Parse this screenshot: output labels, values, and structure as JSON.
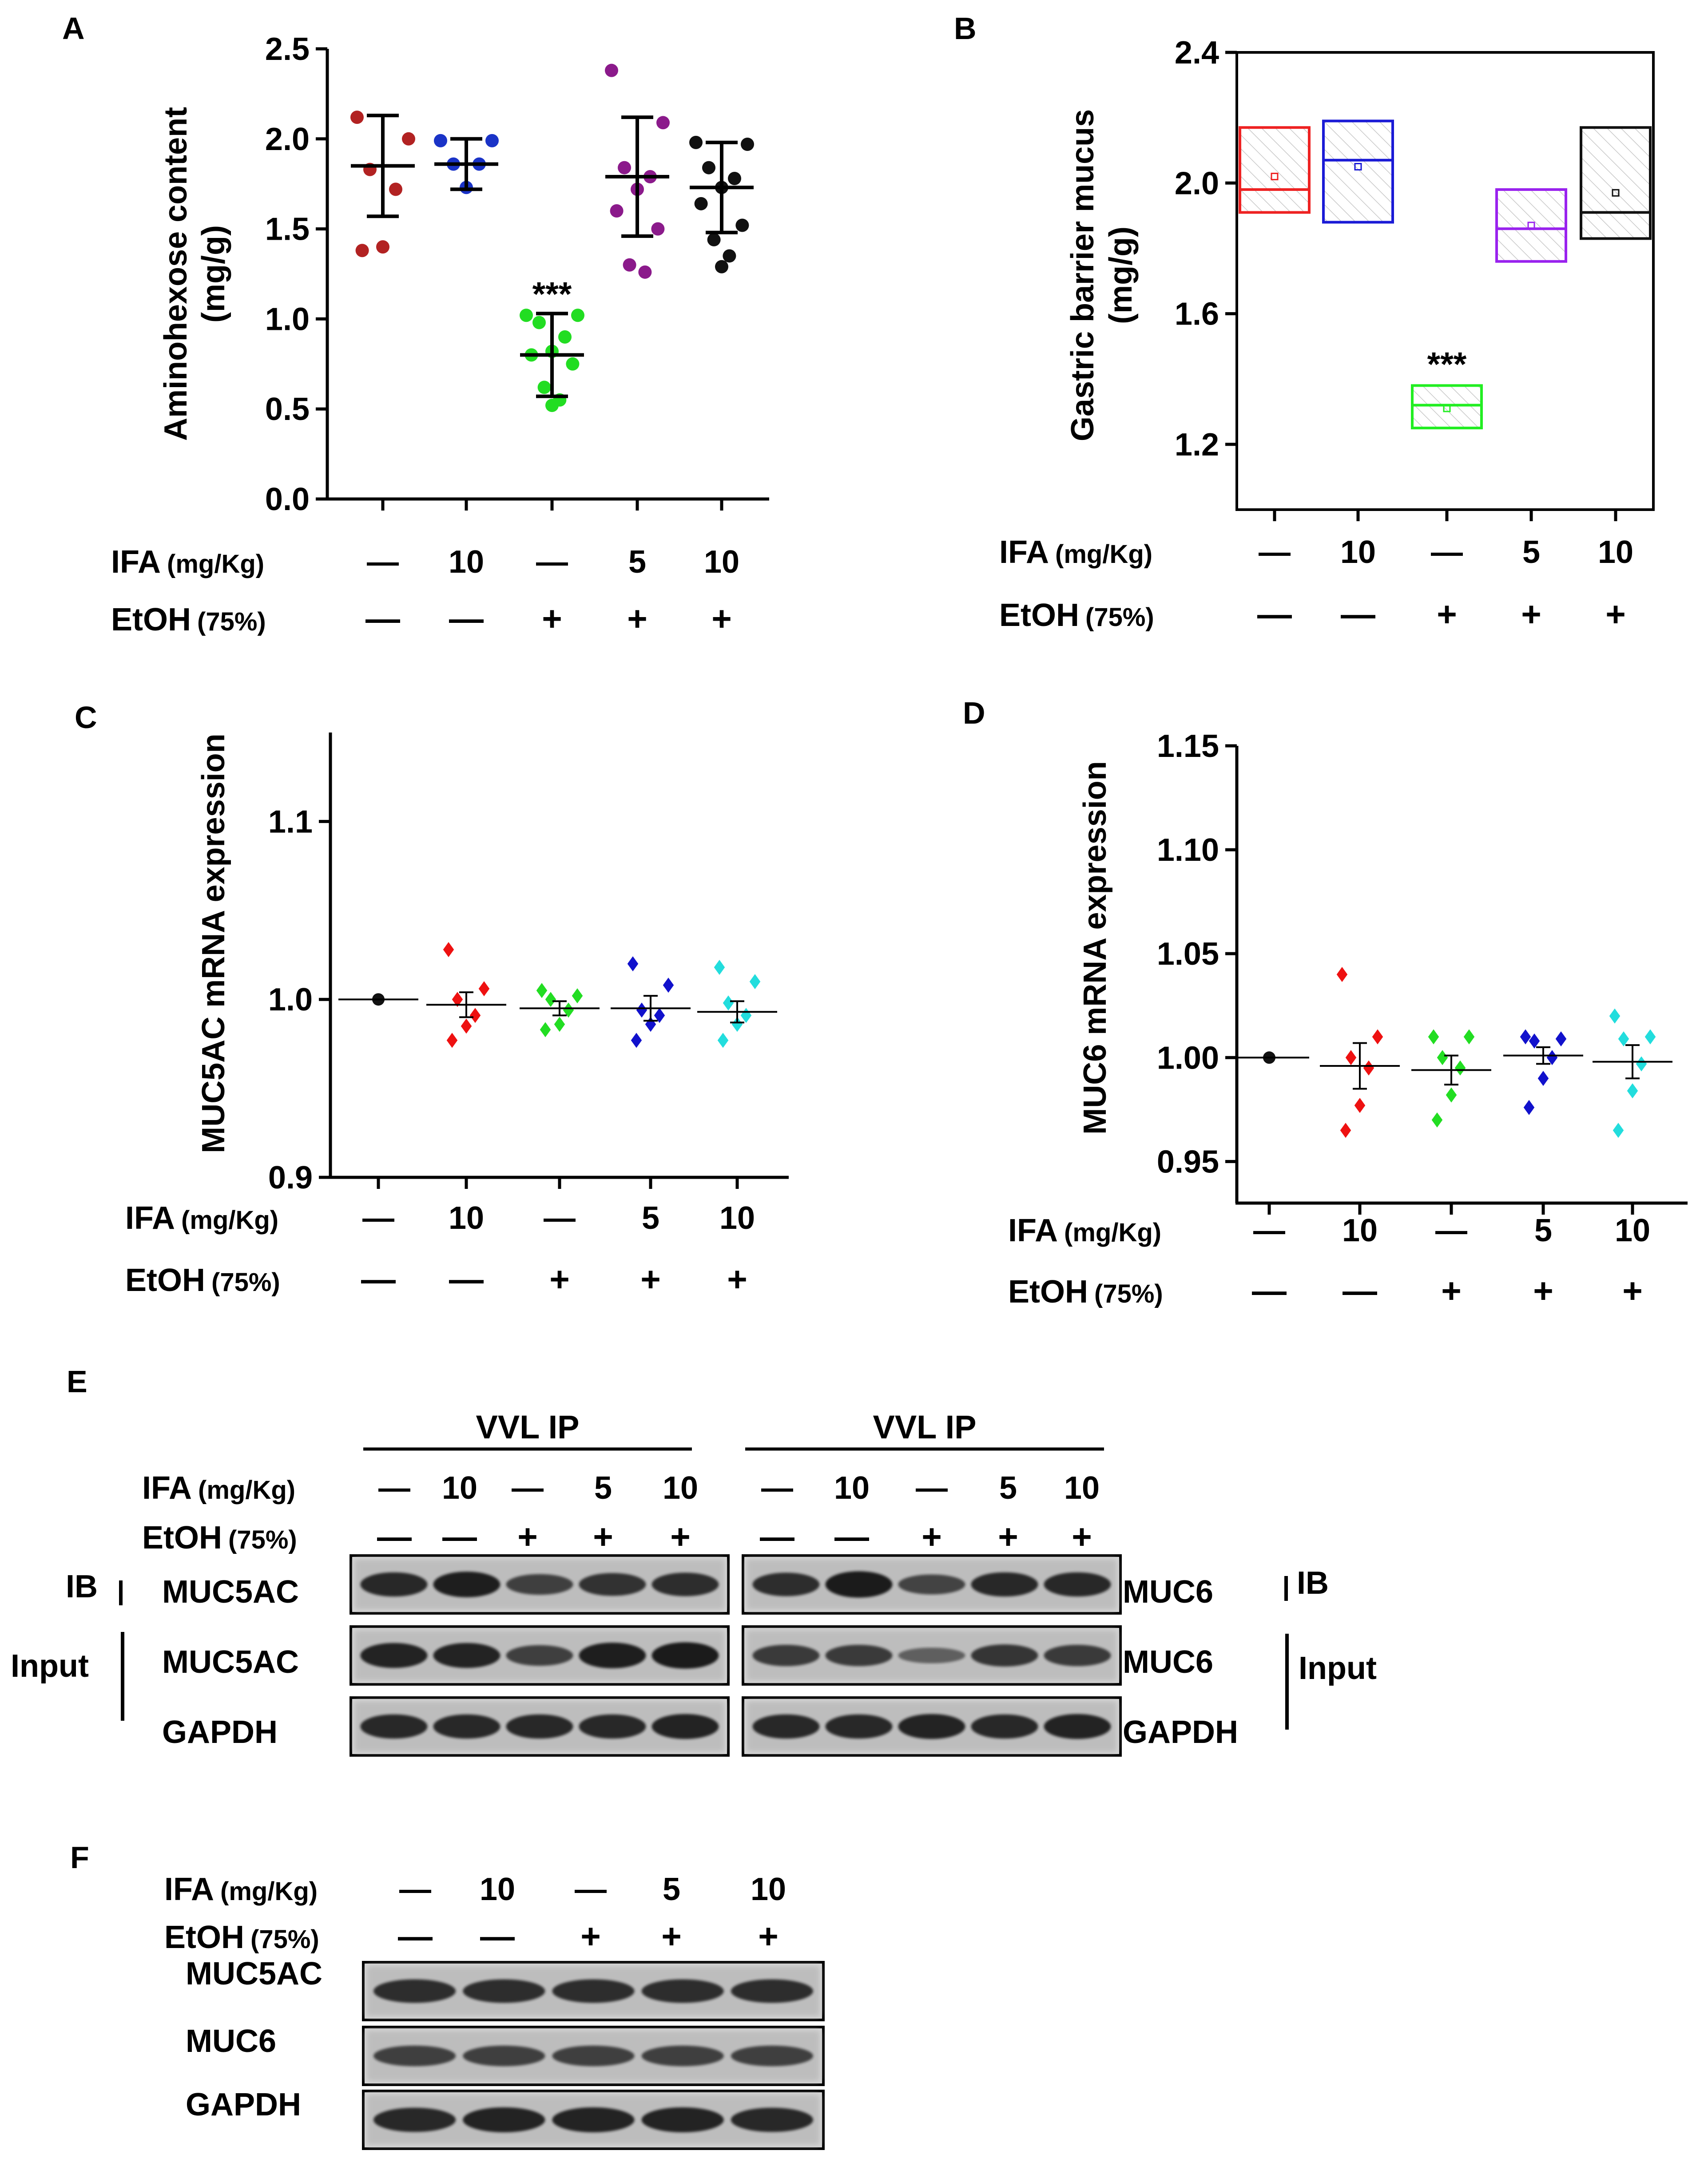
{
  "treatments": {
    "ifa_label": "IFA",
    "ifa_unit": "(mg/Kg)",
    "etoh_label": "EtOH",
    "etoh_unit": "(75%)",
    "ifa_values": [
      "—",
      "10",
      "—",
      "5",
      "10"
    ],
    "etoh_values": [
      "—",
      "—",
      "+",
      "+",
      "+"
    ]
  },
  "panels": {
    "A": {
      "letter": "A"
    },
    "B": {
      "letter": "B"
    },
    "C": {
      "letter": "C"
    },
    "D": {
      "letter": "D"
    },
    "E": {
      "letter": "E"
    },
    "F": {
      "letter": "F"
    }
  },
  "chart_data": [
    {
      "panel": "A",
      "type": "scatter",
      "ylabel_line1": "Aminohexose content",
      "ylabel_line2": "(mg/g)",
      "ylim": [
        0,
        2.5
      ],
      "yticks": [
        "0.0",
        "0.5",
        "1.0",
        "1.5",
        "2.0",
        "2.5"
      ],
      "significance": {
        "group": 2,
        "label": "***"
      },
      "groups": [
        {
          "color": "#b22222",
          "mean": 1.85,
          "sd": 0.28,
          "points": [
            2.12,
            2.0,
            1.83,
            1.72,
            1.4,
            1.38
          ]
        },
        {
          "color": "#1a33c7",
          "mean": 1.86,
          "sd": 0.14,
          "points": [
            1.99,
            1.99,
            1.86,
            1.86,
            1.73
          ]
        },
        {
          "color": "#22dd22",
          "mean": 0.8,
          "sd": 0.23,
          "points": [
            1.02,
            1.02,
            0.98,
            0.9,
            0.82,
            0.8,
            0.75,
            0.62,
            0.55,
            0.52
          ]
        },
        {
          "color": "#8b1a8b",
          "mean": 1.79,
          "sd": 0.33,
          "points": [
            2.38,
            2.09,
            1.84,
            1.79,
            1.72,
            1.6,
            1.5,
            1.3,
            1.26
          ]
        },
        {
          "color": "#111111",
          "mean": 1.73,
          "sd": 0.25,
          "points": [
            1.98,
            1.97,
            1.84,
            1.78,
            1.73,
            1.64,
            1.52,
            1.44,
            1.35,
            1.29
          ]
        }
      ]
    },
    {
      "panel": "B",
      "type": "box",
      "ylabel_line1": "Gastric barrier mucus",
      "ylabel_line2": "(mg/g)",
      "ylim": [
        1.0,
        2.4
      ],
      "yticks": [
        "1.2",
        "1.6",
        "2.0",
        "2.4"
      ],
      "significance": {
        "group": 2,
        "label": "***"
      },
      "groups": [
        {
          "color": "#ee2222",
          "q1": 1.91,
          "median": 1.98,
          "q3": 2.17,
          "mean": 2.02
        },
        {
          "color": "#1a1ad6",
          "q1": 1.88,
          "median": 2.07,
          "q3": 2.19,
          "mean": 2.05
        },
        {
          "color": "#22ee22",
          "q1": 1.25,
          "median": 1.32,
          "q3": 1.38,
          "mean": 1.31
        },
        {
          "color": "#9922ee",
          "q1": 1.76,
          "median": 1.86,
          "q3": 1.98,
          "mean": 1.87
        },
        {
          "color": "#111111",
          "q1": 1.83,
          "median": 1.91,
          "q3": 2.17,
          "mean": 1.97
        }
      ]
    },
    {
      "panel": "C",
      "type": "scatter",
      "ylabel": "MUC5AC mRNA expression",
      "ylim": [
        0.9,
        1.15
      ],
      "yticks": [
        "0.9",
        "1.0",
        "1.1"
      ],
      "groups": [
        {
          "color": "#111111",
          "mean": 1.0,
          "sem": 0.0,
          "points": [
            1.0
          ]
        },
        {
          "color": "#ee1111",
          "mean": 0.997,
          "sem": 0.007,
          "points": [
            1.028,
            1.006,
            1.0,
            0.991,
            0.985,
            0.977
          ]
        },
        {
          "color": "#22dd22",
          "mean": 0.995,
          "sem": 0.004,
          "points": [
            1.005,
            1.002,
            1.0,
            0.994,
            0.986,
            0.983
          ]
        },
        {
          "color": "#1111cc",
          "mean": 0.995,
          "sem": 0.007,
          "points": [
            1.02,
            1.008,
            0.994,
            0.991,
            0.986,
            0.977
          ]
        },
        {
          "color": "#22dddd",
          "mean": 0.993,
          "sem": 0.006,
          "points": [
            1.018,
            1.01,
            0.998,
            0.991,
            0.986,
            0.977
          ]
        }
      ]
    },
    {
      "panel": "D",
      "type": "scatter",
      "ylabel": "MUC6 mRNA expression",
      "ylim": [
        0.93,
        1.15
      ],
      "yticks": [
        "0.95",
        "1.00",
        "1.05",
        "1.10",
        "1.15"
      ],
      "groups": [
        {
          "color": "#111111",
          "mean": 1.0,
          "sem": 0.0,
          "points": [
            1.0
          ]
        },
        {
          "color": "#ee1111",
          "mean": 0.996,
          "sem": 0.011,
          "points": [
            1.04,
            1.01,
            1.0,
            0.995,
            0.977,
            0.965
          ]
        },
        {
          "color": "#22dd22",
          "mean": 0.994,
          "sem": 0.007,
          "points": [
            1.01,
            1.01,
            1.0,
            0.995,
            0.982,
            0.97
          ]
        },
        {
          "color": "#1111cc",
          "mean": 1.001,
          "sem": 0.004,
          "points": [
            1.01,
            1.009,
            1.008,
            1.0,
            0.99,
            0.976
          ]
        },
        {
          "color": "#22dddd",
          "mean": 0.998,
          "sem": 0.008,
          "points": [
            1.02,
            1.01,
            1.009,
            0.997,
            0.984,
            0.965
          ]
        }
      ]
    }
  ],
  "blots": {
    "E": {
      "vvl_ip_left": "VVL IP",
      "vvl_ip_right": "VVL IP",
      "ib_left": "IB",
      "ib_right": "IB",
      "input_left": "Input",
      "input_right": "Input",
      "left_rows": [
        "MUC5AC",
        "MUC5AC",
        "GAPDH"
      ],
      "right_rows": [
        "MUC6",
        "MUC6",
        "GAPDH"
      ]
    },
    "F": {
      "rows": [
        "MUC5AC",
        "MUC6",
        "GAPDH"
      ]
    }
  }
}
